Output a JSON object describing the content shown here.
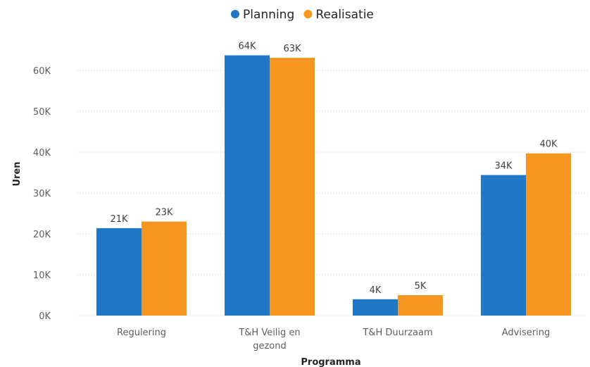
{
  "chart_data": {
    "type": "bar",
    "categories": [
      [
        "Regulering"
      ],
      [
        "T&H Veilig en",
        "gezond"
      ],
      [
        "T&H Duurzaam"
      ],
      [
        "Advisering"
      ]
    ],
    "series": [
      {
        "name": "Planning",
        "color": "#1f77c6",
        "values": [
          21400,
          63700,
          4000,
          34400
        ],
        "labels": [
          "21K",
          "64K",
          "4K",
          "34K"
        ]
      },
      {
        "name": "Realisatie",
        "color": "#f4961f",
        "values": [
          23000,
          63100,
          5000,
          39700
        ],
        "labels": [
          "23K",
          "63K",
          "5K",
          "40K"
        ]
      }
    ],
    "ylim": [
      0,
      60000
    ],
    "yticks": [
      0,
      10000,
      20000,
      30000,
      40000,
      50000,
      60000
    ],
    "ytick_labels": [
      "0K",
      "10K",
      "20K",
      "30K",
      "40K",
      "50K",
      "60K"
    ],
    "ylabel": "Uren",
    "xlabel": "Programma",
    "legend_position": "top-center",
    "grid": true
  }
}
